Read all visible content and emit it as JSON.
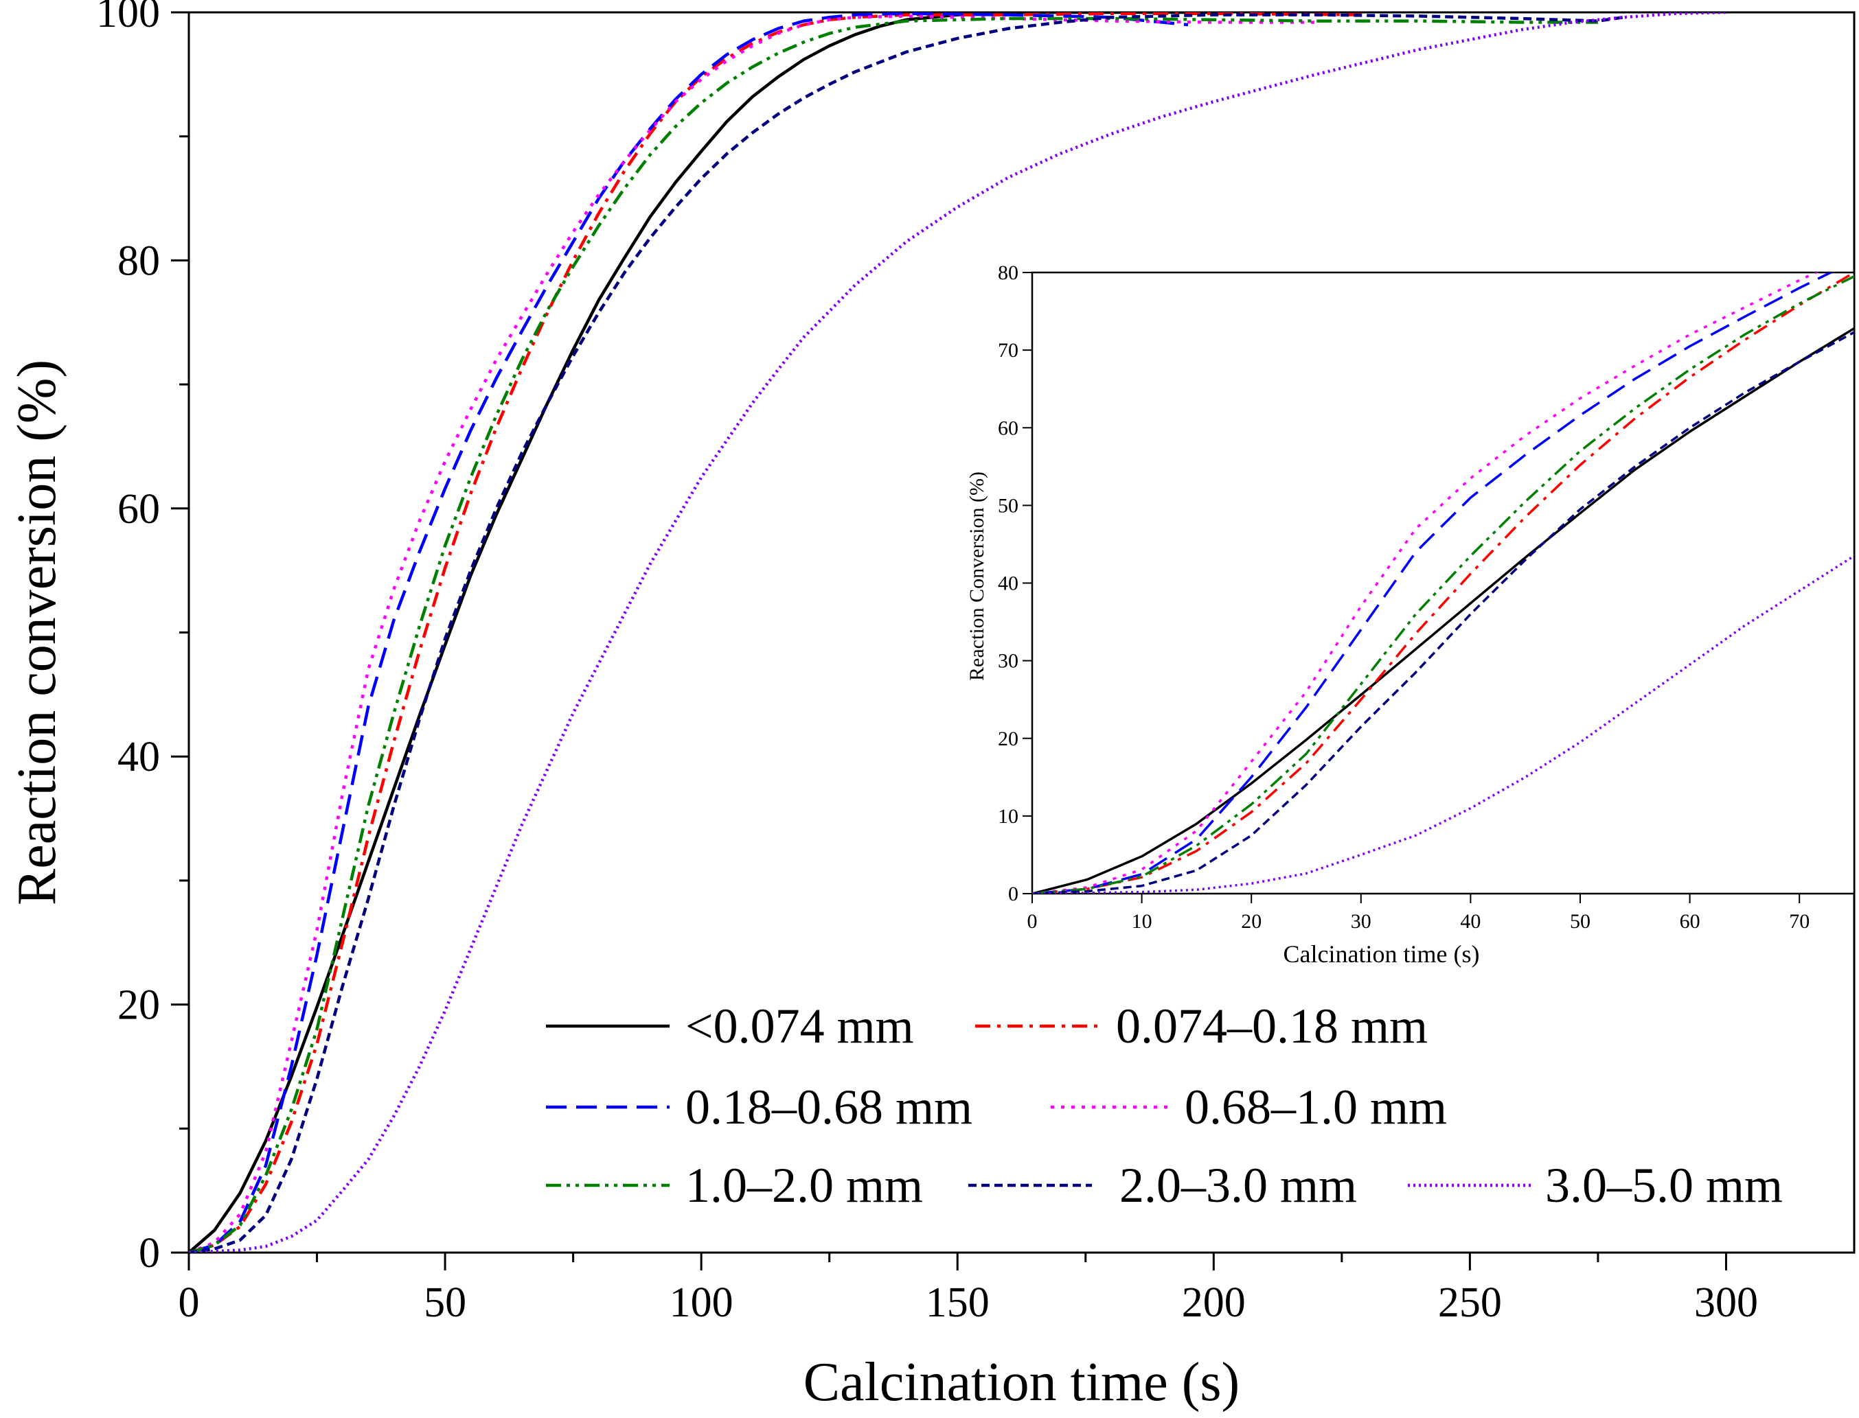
{
  "chart_data": [
    {
      "id": "main",
      "type": "line",
      "title": "",
      "xlabel": "Calcination time (s)",
      "ylabel": "Reaction conversion (%)",
      "xlim": [
        0,
        325
      ],
      "ylim": [
        0,
        100
      ],
      "x_major_ticks": [
        0,
        50,
        100,
        150,
        200,
        250,
        300
      ],
      "x_minor_ticks": [
        25,
        75,
        125,
        175,
        225,
        275
      ],
      "y_major_ticks": [
        0,
        20,
        40,
        60,
        80,
        100
      ],
      "y_minor_ticks": [
        10,
        30,
        50,
        70,
        90
      ],
      "legend_location": "lower-right",
      "series": [
        {
          "name": "<0.074 mm",
          "color": "#000000",
          "dash": "solid",
          "points": [
            [
              0,
              0
            ],
            [
              5,
              1.8
            ],
            [
              10,
              4.8
            ],
            [
              15,
              9
            ],
            [
              20,
              14.2
            ],
            [
              25,
              19.8
            ],
            [
              30,
              25.6
            ],
            [
              35,
              31.5
            ],
            [
              40,
              37.4
            ],
            [
              45,
              43.3
            ],
            [
              50,
              49
            ],
            [
              55,
              54.6
            ],
            [
              60,
              59.5
            ],
            [
              65,
              64
            ],
            [
              70,
              68.5
            ],
            [
              75,
              72.8
            ],
            [
              80,
              76.8
            ],
            [
              85,
              80.2
            ],
            [
              90,
              83.5
            ],
            [
              95,
              86.3
            ],
            [
              100,
              88.8
            ],
            [
              105,
              91.2
            ],
            [
              110,
              93.2
            ],
            [
              115,
              94.8
            ],
            [
              120,
              96.2
            ],
            [
              125,
              97.3
            ],
            [
              130,
              98.2
            ],
            [
              135,
              98.9
            ],
            [
              140,
              99.4
            ],
            [
              150,
              99.8
            ],
            [
              160,
              100
            ],
            [
              180,
              100
            ],
            [
              200,
              100
            ],
            [
              220,
              100.2
            ]
          ]
        },
        {
          "name": "0.074–0.18 mm",
          "color": "#ff0000",
          "dash": "dashdot",
          "points": [
            [
              0,
              0
            ],
            [
              5,
              0.6
            ],
            [
              10,
              2.1
            ],
            [
              15,
              5.5
            ],
            [
              20,
              10.5
            ],
            [
              25,
              16.8
            ],
            [
              30,
              25
            ],
            [
              35,
              33.5
            ],
            [
              40,
              41.2
            ],
            [
              45,
              48.5
            ],
            [
              50,
              55.2
            ],
            [
              55,
              61.2
            ],
            [
              60,
              66.5
            ],
            [
              65,
              71.3
            ],
            [
              70,
              75.8
            ],
            [
              75,
              80
            ],
            [
              80,
              83.8
            ],
            [
              85,
              87.2
            ],
            [
              90,
              90.2
            ],
            [
              95,
              92.8
            ],
            [
              100,
              94.8
            ],
            [
              105,
              96.3
            ],
            [
              110,
              97.5
            ],
            [
              115,
              98.4
            ],
            [
              120,
              99
            ],
            [
              125,
              99.4
            ],
            [
              130,
              99.6
            ],
            [
              140,
              99.8
            ],
            [
              160,
              99.8
            ],
            [
              180,
              99.9
            ],
            [
              200,
              99.9
            ],
            [
              230,
              99.8
            ]
          ]
        },
        {
          "name": "0.18–0.68 mm",
          "color": "#0000ff",
          "dash": "dashed",
          "points": [
            [
              0,
              0
            ],
            [
              5,
              0.6
            ],
            [
              10,
              2.5
            ],
            [
              15,
              7
            ],
            [
              20,
              15
            ],
            [
              25,
              24
            ],
            [
              30,
              34
            ],
            [
              35,
              44
            ],
            [
              40,
              51
            ],
            [
              45,
              56.5
            ],
            [
              50,
              61.6
            ],
            [
              55,
              66.3
            ],
            [
              60,
              70.5
            ],
            [
              65,
              74.3
            ],
            [
              70,
              78
            ],
            [
              75,
              81.5
            ],
            [
              80,
              85
            ],
            [
              85,
              88
            ],
            [
              90,
              90.6
            ],
            [
              95,
              93
            ],
            [
              100,
              95
            ],
            [
              105,
              96.6
            ],
            [
              110,
              97.8
            ],
            [
              115,
              98.7
            ],
            [
              120,
              99.3
            ],
            [
              125,
              99.6
            ],
            [
              130,
              99.8
            ],
            [
              140,
              99.9
            ],
            [
              160,
              99.8
            ],
            [
              180,
              99.6
            ],
            [
              195,
              99
            ]
          ]
        },
        {
          "name": "0.68–1.0 mm",
          "color": "#ff00ff",
          "dash": "dotted",
          "points": [
            [
              0,
              0
            ],
            [
              5,
              0.8
            ],
            [
              10,
              3.1
            ],
            [
              15,
              8.1
            ],
            [
              20,
              17
            ],
            [
              25,
              26
            ],
            [
              30,
              37
            ],
            [
              35,
              47
            ],
            [
              40,
              53.5
            ],
            [
              45,
              59
            ],
            [
              50,
              63.8
            ],
            [
              55,
              68
            ],
            [
              60,
              72
            ],
            [
              65,
              75.5
            ],
            [
              70,
              79
            ],
            [
              75,
              82.3
            ],
            [
              80,
              85.3
            ],
            [
              85,
              88
            ],
            [
              90,
              90.5
            ],
            [
              95,
              92.8
            ],
            [
              100,
              94.6
            ],
            [
              105,
              96.1
            ],
            [
              110,
              97.3
            ],
            [
              115,
              98.3
            ],
            [
              120,
              99
            ],
            [
              125,
              99.4
            ],
            [
              130,
              99.6
            ],
            [
              140,
              99.7
            ],
            [
              160,
              99.5
            ],
            [
              180,
              99.3
            ],
            [
              200,
              99.2
            ],
            [
              220,
              99.2
            ]
          ]
        },
        {
          "name": "1.0–2.0 mm",
          "color": "#008000",
          "dash": "dashdotdot",
          "points": [
            [
              0,
              0
            ],
            [
              5,
              0.6
            ],
            [
              10,
              2.2
            ],
            [
              15,
              6.2
            ],
            [
              20,
              11.5
            ],
            [
              25,
              18
            ],
            [
              30,
              27
            ],
            [
              35,
              36
            ],
            [
              40,
              43.5
            ],
            [
              45,
              50.5
            ],
            [
              50,
              57
            ],
            [
              55,
              62.5
            ],
            [
              60,
              67.5
            ],
            [
              65,
              72
            ],
            [
              70,
              76
            ],
            [
              75,
              79.5
            ],
            [
              80,
              82.8
            ],
            [
              85,
              85.8
            ],
            [
              90,
              88.5
            ],
            [
              95,
              90.8
            ],
            [
              100,
              92.7
            ],
            [
              105,
              94.3
            ],
            [
              110,
              95.6
            ],
            [
              115,
              96.7
            ],
            [
              120,
              97.6
            ],
            [
              125,
              98.3
            ],
            [
              130,
              98.8
            ],
            [
              140,
              99.3
            ],
            [
              160,
              99.5
            ],
            [
              180,
              99.5
            ],
            [
              200,
              99.4
            ],
            [
              220,
              99.3
            ],
            [
              240,
              99.3
            ],
            [
              260,
              99.2
            ],
            [
              275,
              99.2
            ]
          ]
        },
        {
          "name": "2.0–3.0 mm",
          "color": "#000080",
          "dash": "shortdash",
          "points": [
            [
              0,
              0
            ],
            [
              5,
              0.3
            ],
            [
              10,
              1
            ],
            [
              15,
              3
            ],
            [
              20,
              7.5
            ],
            [
              25,
              14
            ],
            [
              30,
              21.5
            ],
            [
              35,
              28.5
            ],
            [
              40,
              36
            ],
            [
              45,
              43
            ],
            [
              50,
              49.5
            ],
            [
              55,
              55
            ],
            [
              60,
              60
            ],
            [
              65,
              64.5
            ],
            [
              70,
              68.5
            ],
            [
              75,
              72.3
            ],
            [
              80,
              75.8
            ],
            [
              85,
              79
            ],
            [
              90,
              81.8
            ],
            [
              95,
              84.3
            ],
            [
              100,
              86.6
            ],
            [
              105,
              88.6
            ],
            [
              110,
              90.3
            ],
            [
              115,
              91.8
            ],
            [
              120,
              93.1
            ],
            [
              125,
              94.2
            ],
            [
              130,
              95.2
            ],
            [
              140,
              96.8
            ],
            [
              150,
              97.9
            ],
            [
              160,
              98.7
            ],
            [
              170,
              99.2
            ],
            [
              180,
              99.6
            ],
            [
              200,
              99.8
            ],
            [
              220,
              99.8
            ],
            [
              240,
              99.7
            ],
            [
              260,
              99.5
            ],
            [
              275,
              99.3
            ],
            [
              280,
              99.6
            ]
          ]
        },
        {
          "name": "3.0–5.0 mm",
          "color": "#8000ff",
          "dash": "densedot",
          "points": [
            [
              0,
              0
            ],
            [
              5,
              0.1
            ],
            [
              10,
              0.2
            ],
            [
              15,
              0.5
            ],
            [
              20,
              1.3
            ],
            [
              25,
              2.6
            ],
            [
              30,
              5
            ],
            [
              35,
              7.5
            ],
            [
              40,
              11
            ],
            [
              45,
              15
            ],
            [
              50,
              19.5
            ],
            [
              55,
              24.5
            ],
            [
              60,
              29.5
            ],
            [
              65,
              34.5
            ],
            [
              70,
              39
            ],
            [
              75,
              43.5
            ],
            [
              80,
              47.5
            ],
            [
              85,
              51.5
            ],
            [
              90,
              55.5
            ],
            [
              95,
              59
            ],
            [
              100,
              62.5
            ],
            [
              105,
              65.5
            ],
            [
              110,
              68.5
            ],
            [
              115,
              71.2
            ],
            [
              120,
              73.8
            ],
            [
              130,
              78
            ],
            [
              140,
              81.5
            ],
            [
              150,
              84.3
            ],
            [
              160,
              86.7
            ],
            [
              170,
              88.6
            ],
            [
              180,
              90.2
            ],
            [
              190,
              91.6
            ],
            [
              200,
              92.8
            ],
            [
              210,
              93.9
            ],
            [
              220,
              95
            ],
            [
              230,
              96
            ],
            [
              240,
              97
            ],
            [
              250,
              97.8
            ],
            [
              260,
              98.6
            ],
            [
              270,
              99.2
            ],
            [
              280,
              99.6
            ],
            [
              290,
              99.9
            ],
            [
              300,
              100
            ]
          ]
        }
      ]
    },
    {
      "id": "inset",
      "type": "line",
      "title": "",
      "xlabel": "Calcination time (s)",
      "ylabel": "Reaction Conversion (%)",
      "xlim": [
        0,
        75
      ],
      "ylim": [
        0,
        80
      ],
      "x_major_ticks": [
        0,
        10,
        20,
        30,
        40,
        50,
        60,
        70
      ],
      "y_major_ticks": [
        0,
        10,
        20,
        30,
        40,
        50,
        60,
        70,
        80
      ],
      "series_ref": "main"
    }
  ],
  "legend": {
    "rows": [
      [
        "<0.074 mm",
        "0.074–0.18 mm"
      ],
      [
        "0.18–0.68 mm",
        "0.68–1.0 mm"
      ],
      [
        "1.0–2.0 mm",
        "2.0–3.0 mm",
        "3.0–5.0 mm"
      ]
    ]
  }
}
